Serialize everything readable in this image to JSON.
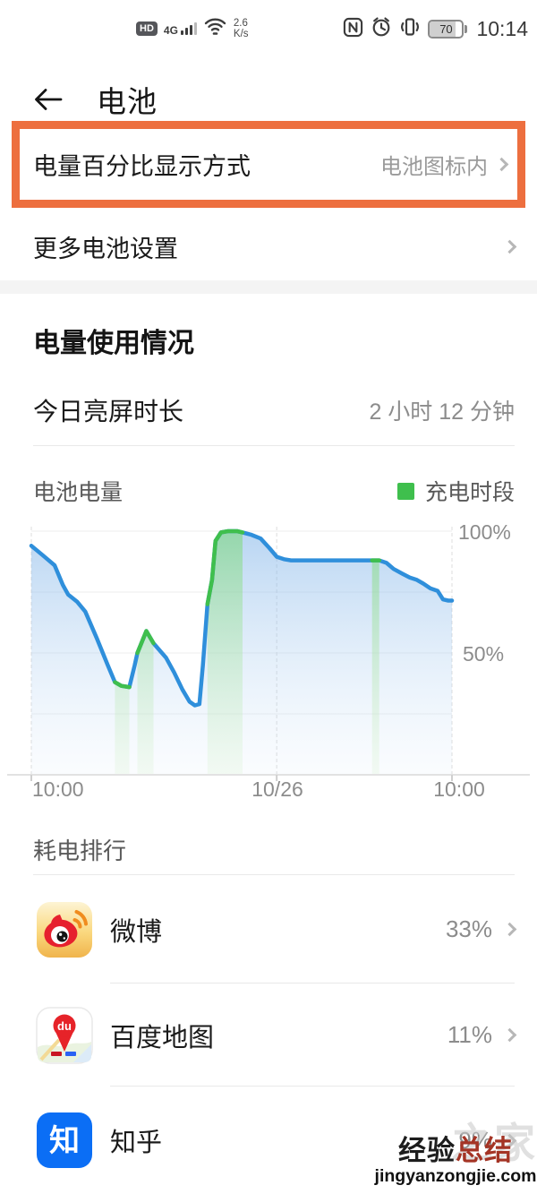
{
  "status_bar": {
    "hd": "HD",
    "network": "4G",
    "speed_value": "2.6",
    "speed_unit": "K/s",
    "battery_level": "70",
    "time": "10:14"
  },
  "header": {
    "title": "电池"
  },
  "settings": {
    "percent_row": {
      "label": "电量百分比显示方式",
      "value": "电池图标内"
    },
    "more_row": {
      "label": "更多电池设置"
    }
  },
  "usage": {
    "section_title": "电量使用情况",
    "screen_time_label": "今日亮屏时长",
    "screen_time_value": "2 小时 12 分钟"
  },
  "chart_data": {
    "type": "area",
    "title": "电池电量",
    "legend": "充电时段",
    "ylim": [
      0,
      100
    ],
    "ylabel_ticks": [
      "100%",
      "50%"
    ],
    "x_range_hours": [
      0,
      24
    ],
    "x_tick_hours": [
      0,
      14,
      24
    ],
    "x_tick_labels": [
      "10:00",
      "10/26",
      "10:00"
    ],
    "grid": true,
    "line_color": "#2F8FDB",
    "charge_color": "#3FBF4D",
    "points_t_pct": [
      [
        0,
        94
      ],
      [
        0.67,
        90
      ],
      [
        1.33,
        86
      ],
      [
        1.79,
        78
      ],
      [
        2.1,
        74
      ],
      [
        2.62,
        71
      ],
      [
        3.08,
        67
      ],
      [
        3.74,
        56
      ],
      [
        4.36,
        45
      ],
      [
        4.77,
        38
      ],
      [
        5.13,
        36.5
      ],
      [
        5.59,
        36
      ],
      [
        5.9,
        45
      ],
      [
        6.05,
        50
      ],
      [
        6.56,
        59
      ],
      [
        6.97,
        54
      ],
      [
        7.69,
        48
      ],
      [
        8.15,
        42
      ],
      [
        8.62,
        35
      ],
      [
        9.03,
        30
      ],
      [
        9.33,
        28.5
      ],
      [
        9.59,
        29
      ],
      [
        9.79,
        45
      ],
      [
        10.05,
        70
      ],
      [
        10.31,
        80
      ],
      [
        10.51,
        96
      ],
      [
        10.82,
        99.5
      ],
      [
        11.23,
        100
      ],
      [
        11.74,
        100
      ],
      [
        12.05,
        99.5
      ],
      [
        12.56,
        98.5
      ],
      [
        13.08,
        97
      ],
      [
        13.59,
        93
      ],
      [
        14,
        89.5
      ],
      [
        14.41,
        88.5
      ],
      [
        14.82,
        88
      ],
      [
        19.44,
        88
      ],
      [
        19.85,
        88
      ],
      [
        20.26,
        87
      ],
      [
        20.67,
        84.5
      ],
      [
        21.18,
        82.5
      ],
      [
        21.59,
        81
      ],
      [
        22,
        80
      ],
      [
        22.36,
        78.5
      ],
      [
        22.77,
        76.5
      ],
      [
        23.18,
        75.5
      ],
      [
        23.49,
        72
      ],
      [
        23.79,
        71.5
      ],
      [
        24,
        71.5
      ]
    ],
    "charging_intervals_t": [
      [
        4.77,
        5.59
      ],
      [
        6.05,
        6.97
      ],
      [
        10.05,
        12.05
      ],
      [
        19.44,
        19.85
      ]
    ]
  },
  "ranking": {
    "section_title": "耗电排行",
    "apps": [
      {
        "name": "微博",
        "percent": "33%"
      },
      {
        "name": "百度地图",
        "percent": "11%"
      },
      {
        "name": "知乎",
        "percent": "9%"
      }
    ]
  },
  "watermark": {
    "faint": "之家",
    "line1_black": "经验",
    "line1_red": "总结",
    "line2": "jingyanzongjie.com"
  },
  "colors": {
    "accent_orange": "#ED6F3F",
    "chart_line_blue": "#2F8FDB",
    "charge_green": "#3FBF4D",
    "text_gray": "#8C8C8C",
    "separator_gray": "#F4F4F4"
  }
}
